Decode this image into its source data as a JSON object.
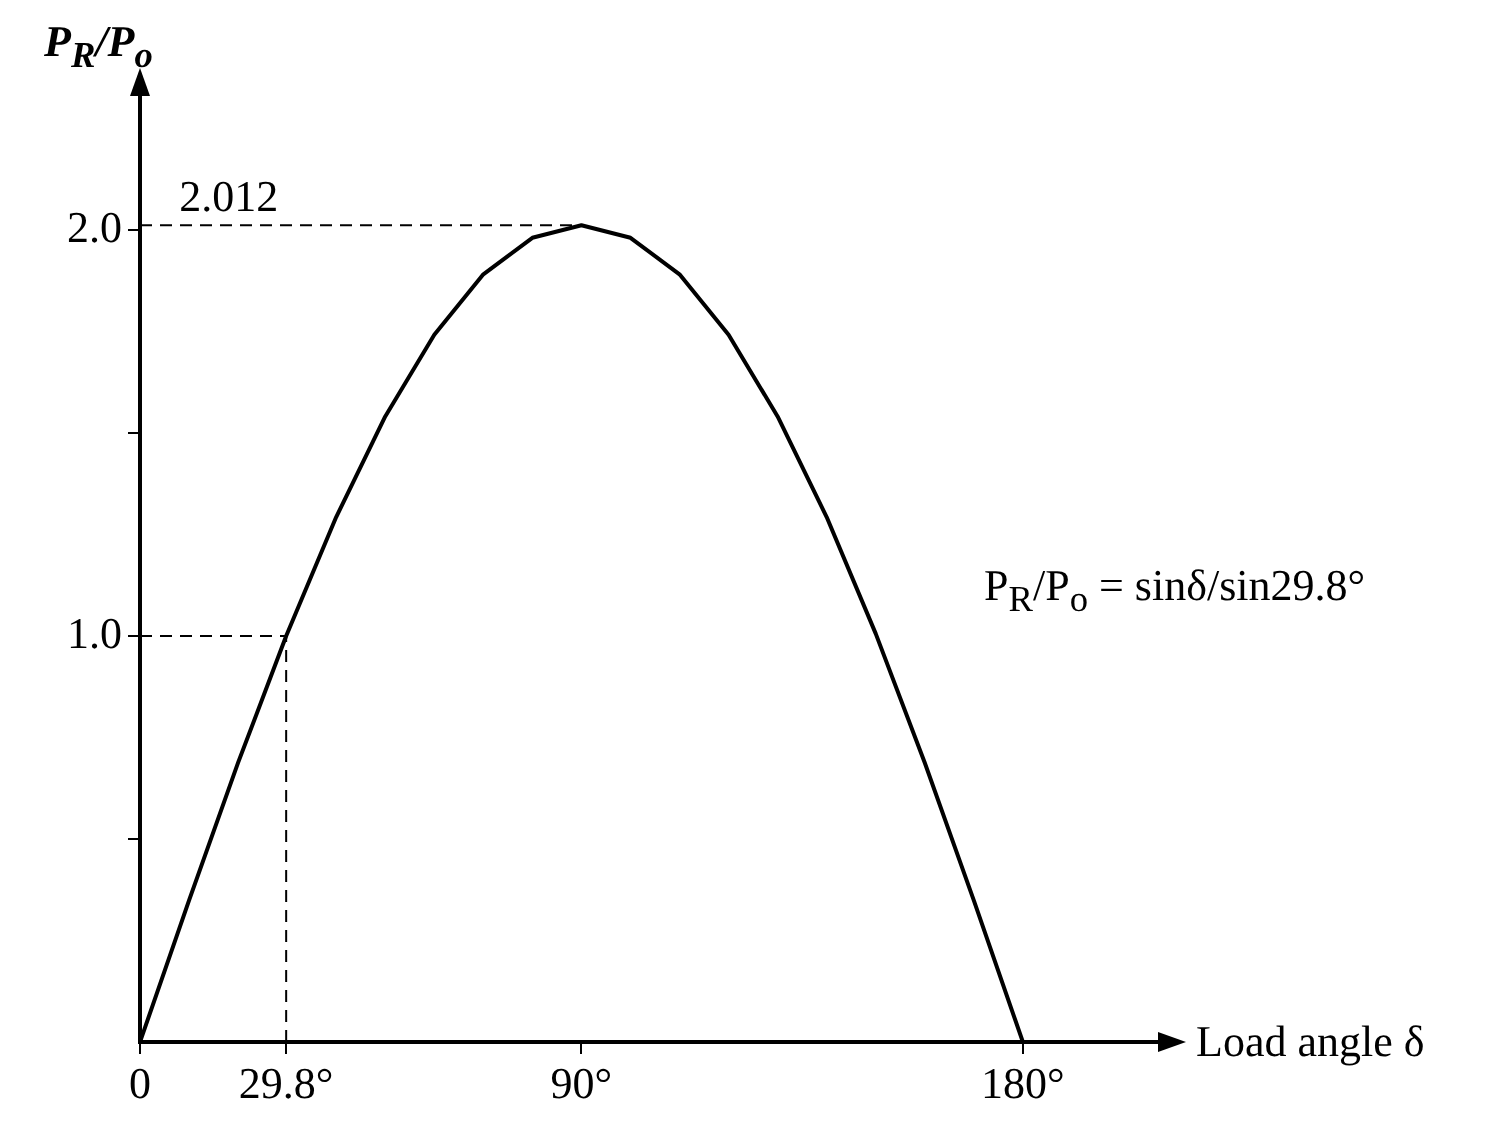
{
  "chart_data": {
    "type": "line",
    "xlabel": "Load angle δ",
    "ylabel": "P$_{R}$/P$_{o}$",
    "xlim": [
      0,
      210
    ],
    "ylim": [
      0,
      2.35
    ],
    "xticks": [
      0,
      {
        "value": 29.8,
        "label": "29.8°"
      },
      {
        "value": 90,
        "label": "90°"
      },
      {
        "value": 180,
        "label": "180°"
      }
    ],
    "yticks": [
      {
        "value": 0.5,
        "label": null
      },
      {
        "value": 1.0,
        "label": "1.0"
      },
      {
        "value": 1.5,
        "label": null
      },
      {
        "value": 2.0,
        "label": "2.0"
      }
    ],
    "grid": false,
    "legend": false,
    "marker": "none",
    "series": [
      {
        "color": "#000000",
        "line_style": "solid",
        "x": [
          0,
          10,
          20,
          29.8,
          40,
          50,
          60,
          70,
          80,
          90,
          100,
          110,
          120,
          130,
          140,
          150,
          160,
          170,
          180
        ],
        "values": [
          0,
          0.349,
          0.688,
          1.0,
          1.293,
          1.541,
          1.742,
          1.891,
          1.981,
          2.012,
          1.981,
          1.891,
          1.742,
          1.541,
          1.293,
          1.006,
          0.688,
          0.349,
          0
        ]
      },
      {
        "color": "#000000",
        "line_style": "dashed",
        "x": [
          0,
          29.8,
          29.8
        ],
        "values": [
          1.0,
          1.0,
          0
        ]
      },
      {
        "color": "#000000",
        "line_style": "dashed",
        "x": [
          0,
          90
        ],
        "values": [
          2.012,
          2.012
        ]
      }
    ],
    "annotations": [
      {
        "text": "2.012",
        "x": 8,
        "y": 2.012
      },
      "P$_{R}$/P$_{o}$ = sinδ/sin29.8°"
    ]
  }
}
